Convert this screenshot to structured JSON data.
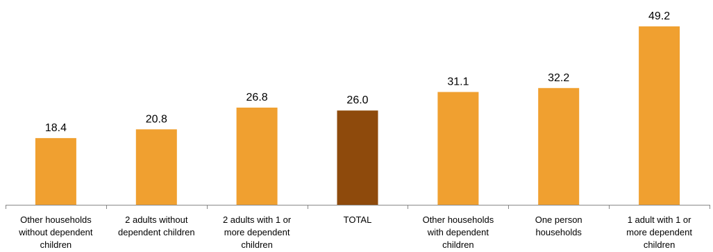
{
  "chart_data": {
    "type": "bar",
    "title": "",
    "xlabel": "",
    "ylabel": "",
    "categories": [
      "Other households without dependent children",
      "2 adults without dependent children",
      "2 adults with 1 or more dependent children",
      "TOTAL",
      "Other households with dependent children",
      "One person households",
      "1 adult with 1 or more dependent children"
    ],
    "category_lines": [
      [
        "Other households",
        "without dependent",
        "children"
      ],
      [
        "2 adults without",
        "dependent children"
      ],
      [
        "2 adults with 1 or",
        "more dependent",
        "children"
      ],
      [
        "TOTAL"
      ],
      [
        "Other households",
        "with dependent",
        "children"
      ],
      [
        "One person",
        "households"
      ],
      [
        "1 adult with 1 or",
        "more dependent",
        "children"
      ]
    ],
    "values": [
      18.4,
      20.8,
      26.8,
      26.0,
      31.1,
      32.2,
      49.2
    ],
    "value_labels": [
      "18.4",
      "20.8",
      "26.8",
      "26.0",
      "31.1",
      "32.2",
      "49.2"
    ],
    "highlight_index": 3,
    "ylim": [
      0,
      49.2
    ],
    "grid": false,
    "legend": "none",
    "colors": {
      "bar": "#F0A030",
      "highlight": "#8E4A0C",
      "axis": "#888888",
      "text": "#000000"
    }
  }
}
